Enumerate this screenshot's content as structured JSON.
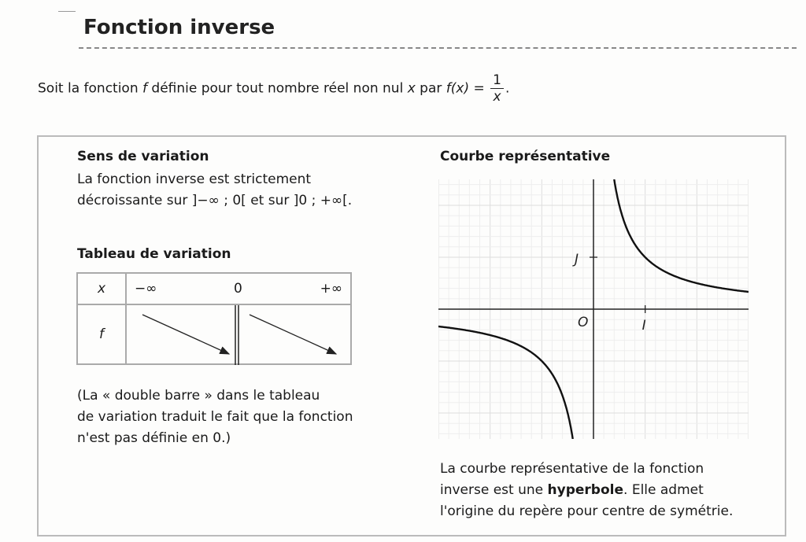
{
  "title": "Fonction inverse",
  "intro": {
    "before": "Soit la fonction ",
    "f": "f",
    "middle": " définie pour tout nombre réel non nul ",
    "x": "x",
    "par": " par ",
    "fx": "f(x) = ",
    "num": "1",
    "den": "x",
    "end": "."
  },
  "sens": {
    "heading": "Sens de variation",
    "line1": "La fonction inverse est strictement",
    "line2": "décroissante sur ]−∞ ; 0[ et sur ]0 ; +∞[."
  },
  "tableau": {
    "heading": "Tableau de variation",
    "x_label": "x",
    "f_label": "f",
    "minus_inf": "−∞",
    "zero": "0",
    "plus_inf": "+∞"
  },
  "note": {
    "line1": "(La « double barre » dans le tableau",
    "line2": "de variation traduit le fait que la fonction",
    "line3": "n'est pas définie en 0.)"
  },
  "courbe": {
    "heading": "Courbe représentative",
    "O": "O",
    "I": "I",
    "J": "J",
    "xlim": [
      -3,
      3
    ],
    "ylim": [
      -2.5,
      2.5
    ],
    "grid": true,
    "function": "1/x"
  },
  "caption": {
    "line1": "La courbe représentative de la fonction",
    "line2a": "inverse est une ",
    "bold": "hyperbole",
    "line2b": ". Elle admet",
    "line3": "l'origine du repère pour centre de symétrie."
  }
}
